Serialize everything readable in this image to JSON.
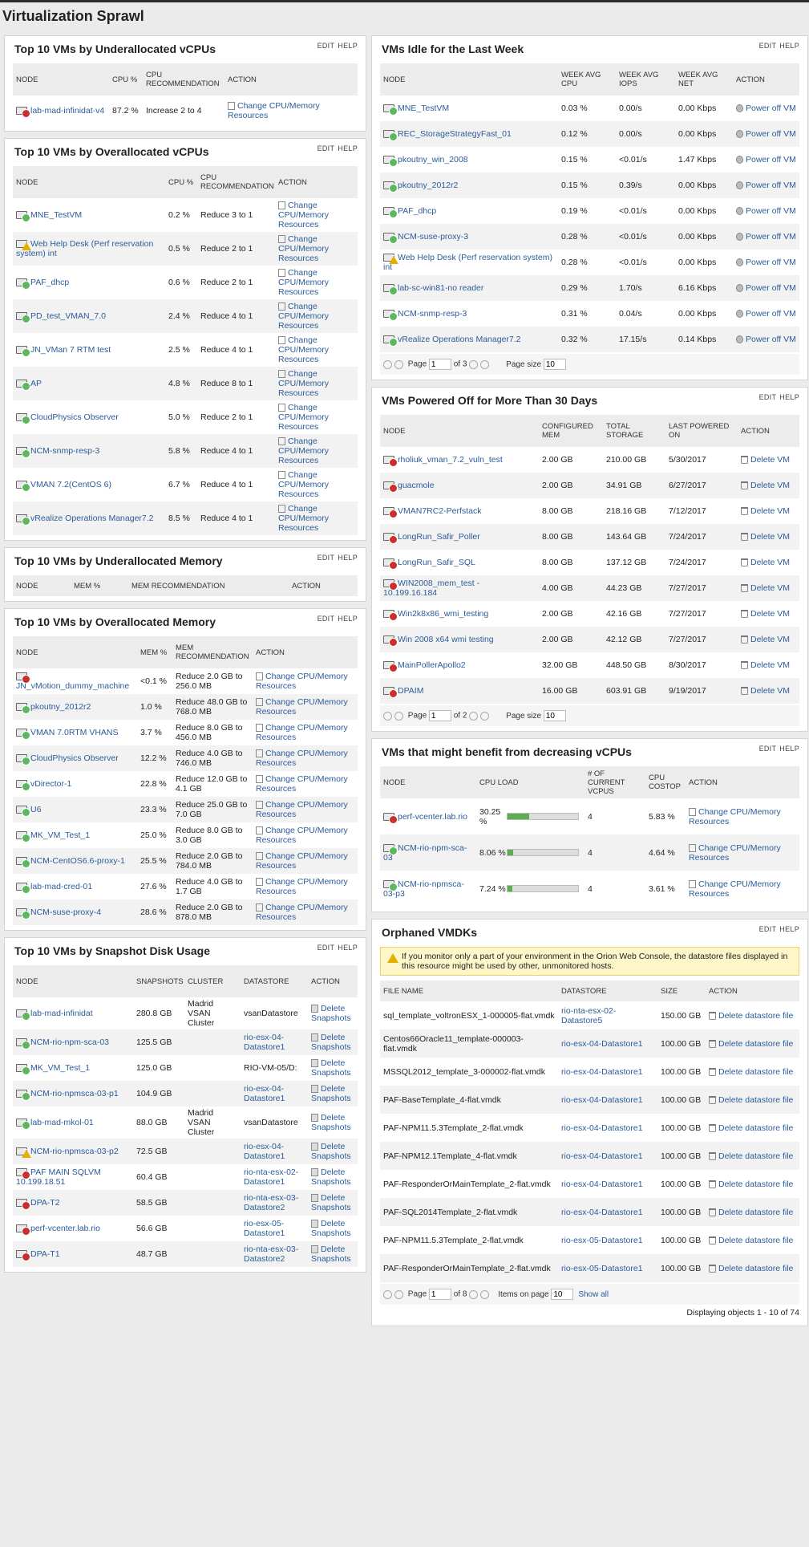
{
  "page_title": "Virtualization Sprawl",
  "colors": {
    "up": "#5cb85c",
    "critical": "#c9302c",
    "warning": "#e3b000",
    "down": "#c9302c",
    "link": "#2b5c99"
  },
  "common": {
    "edit": "EDIT",
    "help": "HELP"
  },
  "under_cpu": {
    "title": "Top 10 VMs by Underallocated vCPUs",
    "headers": [
      "NODE",
      "CPU %",
      "CPU RECOMMENDATION",
      "ACTION"
    ],
    "rows": [
      {
        "node": "lab-mad-infinidat-v4",
        "status": "critical",
        "cpu": "87.2 %",
        "rec": "Increase 2 to 4",
        "action": "Change CPU/Memory Resources"
      }
    ]
  },
  "over_cpu": {
    "title": "Top 10 VMs by Overallocated vCPUs",
    "headers": [
      "NODE",
      "CPU %",
      "CPU RECOMMENDATION",
      "ACTION"
    ],
    "rows": [
      {
        "node": "MNE_TestVM",
        "status": "up",
        "cpu": "0.2 %",
        "rec": "Reduce 3 to 1",
        "action": "Change CPU/Memory Resources"
      },
      {
        "node": "Web Help Desk (Perf reservation system) int",
        "status": "warn",
        "cpu": "0.5 %",
        "rec": "Reduce 2 to 1",
        "action": "Change CPU/Memory Resources"
      },
      {
        "node": "PAF_dhcp",
        "status": "up",
        "cpu": "0.6 %",
        "rec": "Reduce 2 to 1",
        "action": "Change CPU/Memory Resources"
      },
      {
        "node": "PD_test_VMAN_7.0",
        "status": "up",
        "cpu": "2.4 %",
        "rec": "Reduce 4 to 1",
        "action": "Change CPU/Memory Resources"
      },
      {
        "node": "JN_VMan 7 RTM test",
        "status": "up",
        "cpu": "2.5 %",
        "rec": "Reduce 4 to 1",
        "action": "Change CPU/Memory Resources"
      },
      {
        "node": "AP",
        "status": "up",
        "cpu": "4.8 %",
        "rec": "Reduce 8 to 1",
        "action": "Change CPU/Memory Resources"
      },
      {
        "node": "CloudPhysics Observer",
        "status": "up",
        "cpu": "5.0 %",
        "rec": "Reduce 2 to 1",
        "action": "Change CPU/Memory Resources"
      },
      {
        "node": "NCM-snmp-resp-3",
        "status": "up",
        "cpu": "5.8 %",
        "rec": "Reduce 4 to 1",
        "action": "Change CPU/Memory Resources"
      },
      {
        "node": "VMAN 7.2(CentOS 6)",
        "status": "up",
        "cpu": "6.7 %",
        "rec": "Reduce 4 to 1",
        "action": "Change CPU/Memory Resources"
      },
      {
        "node": "vRealize Operations Manager7.2",
        "status": "up",
        "cpu": "8.5 %",
        "rec": "Reduce 4 to 1",
        "action": "Change CPU/Memory Resources"
      }
    ]
  },
  "under_mem": {
    "title": "Top 10 VMs by Underallocated Memory",
    "headers": [
      "NODE",
      "MEM %",
      "MEM RECOMMENDATION",
      "ACTION"
    ]
  },
  "over_mem": {
    "title": "Top 10 VMs by Overallocated Memory",
    "headers": [
      "NODE",
      "MEM %",
      "MEM RECOMMENDATION",
      "ACTION"
    ],
    "rows": [
      {
        "node": "JN_vMotion_dummy_machine",
        "status": "critical",
        "mem": "<0.1 %",
        "rec": "Reduce 2.0 GB to 256.0 MB",
        "action": "Change CPU/Memory Resources"
      },
      {
        "node": "pkoutny_2012r2",
        "status": "up",
        "mem": "1.0 %",
        "rec": "Reduce 48.0 GB to 768.0 MB",
        "action": "Change CPU/Memory Resources"
      },
      {
        "node": "VMAN 7.0RTM VHANS",
        "status": "up",
        "mem": "3.7 %",
        "rec": "Reduce 8.0 GB to 456.0 MB",
        "action": "Change CPU/Memory Resources"
      },
      {
        "node": "CloudPhysics Observer",
        "status": "up",
        "mem": "12.2 %",
        "rec": "Reduce 4.0 GB to 746.0 MB",
        "action": "Change CPU/Memory Resources"
      },
      {
        "node": "vDirector-1",
        "status": "up",
        "mem": "22.8 %",
        "rec": "Reduce 12.0 GB to 4.1 GB",
        "action": "Change CPU/Memory Resources"
      },
      {
        "node": "U6",
        "status": "up",
        "mem": "23.3 %",
        "rec": "Reduce 25.0 GB to 7.0 GB",
        "action": "Change CPU/Memory Resources"
      },
      {
        "node": "MK_VM_Test_1",
        "status": "up",
        "mem": "25.0 %",
        "rec": "Reduce 8.0 GB to 3.0 GB",
        "action": "Change CPU/Memory Resources"
      },
      {
        "node": "NCM-CentOS6.6-proxy-1",
        "status": "up",
        "mem": "25.5 %",
        "rec": "Reduce 2.0 GB to 784.0 MB",
        "action": "Change CPU/Memory Resources"
      },
      {
        "node": "lab-mad-cred-01",
        "status": "up",
        "mem": "27.6 %",
        "rec": "Reduce 4.0 GB to 1.7 GB",
        "action": "Change CPU/Memory Resources"
      },
      {
        "node": "NCM-suse-proxy-4",
        "status": "up",
        "mem": "28.6 %",
        "rec": "Reduce 2.0 GB to 878.0 MB",
        "action": "Change CPU/Memory Resources"
      }
    ]
  },
  "snapshot": {
    "title": "Top 10 VMs by Snapshot Disk Usage",
    "headers": [
      "NODE",
      "SNAPSHOTS",
      "CLUSTER",
      "DATASTORE",
      "ACTION"
    ],
    "rows": [
      {
        "node": "lab-mad-infinidat",
        "status": "up",
        "snap": "280.8 GB",
        "cluster": "Madrid VSAN Cluster",
        "ds": "vsanDatastore",
        "ds_link": false,
        "action": "Delete Snapshots"
      },
      {
        "node": "NCM-rio-npm-sca-03",
        "status": "up",
        "snap": "125.5 GB",
        "cluster": "",
        "ds": "rio-esx-04-Datastore1",
        "ds_link": true,
        "action": "Delete Snapshots"
      },
      {
        "node": "MK_VM_Test_1",
        "status": "up",
        "snap": "125.0 GB",
        "cluster": "",
        "ds": "RIO-VM-05/D:",
        "ds_link": false,
        "action": "Delete Snapshots"
      },
      {
        "node": "NCM-rio-npmsca-03-p1",
        "status": "up",
        "snap": "104.9 GB",
        "cluster": "",
        "ds": "rio-esx-04-Datastore1",
        "ds_link": true,
        "action": "Delete Snapshots"
      },
      {
        "node": "lab-mad-mkol-01",
        "status": "up",
        "snap": "88.0 GB",
        "cluster": "Madrid VSAN Cluster",
        "ds": "vsanDatastore",
        "ds_link": false,
        "action": "Delete Snapshots"
      },
      {
        "node": "NCM-rio-npmsca-03-p2",
        "status": "warn",
        "snap": "72.5 GB",
        "cluster": "",
        "ds": "rio-esx-04-Datastore1",
        "ds_link": true,
        "action": "Delete Snapshots"
      },
      {
        "node": "PAF MAIN SQLVM 10.199.18.51",
        "status": "down",
        "snap": "60.4 GB",
        "cluster": "",
        "ds": "rio-nta-esx-02-Datastore1",
        "ds_link": true,
        "action": "Delete Snapshots"
      },
      {
        "node": "DPA-T2",
        "status": "down",
        "snap": "58.5 GB",
        "cluster": "",
        "ds": "rio-nta-esx-03-Datastore2",
        "ds_link": true,
        "action": "Delete Snapshots"
      },
      {
        "node": "perf-vcenter.lab.rio",
        "status": "critical",
        "snap": "56.6 GB",
        "cluster": "",
        "ds": "rio-esx-05-Datastore1",
        "ds_link": true,
        "action": "Delete Snapshots"
      },
      {
        "node": "DPA-T1",
        "status": "down",
        "snap": "48.7 GB",
        "cluster": "",
        "ds": "rio-nta-esx-03-Datastore2",
        "ds_link": true,
        "action": "Delete Snapshots"
      }
    ]
  },
  "idle": {
    "title": "VMs Idle for the Last Week",
    "headers": [
      "NODE",
      "WEEK AVG CPU",
      "WEEK AVG IOPS",
      "WEEK AVG NET",
      "ACTION"
    ],
    "rows": [
      {
        "node": "MNE_TestVM",
        "status": "up",
        "cpu": "0.03 %",
        "iops": "0.00/s",
        "net": "0.00 Kbps",
        "action": "Power off VM"
      },
      {
        "node": "REC_StorageStrategyFast_01",
        "status": "up",
        "cpu": "0.12 %",
        "iops": "0.00/s",
        "net": "0.00 Kbps",
        "action": "Power off VM"
      },
      {
        "node": "pkoutny_win_2008",
        "status": "up",
        "cpu": "0.15 %",
        "iops": "<0.01/s",
        "net": "1.47 Kbps",
        "action": "Power off VM"
      },
      {
        "node": "pkoutny_2012r2",
        "status": "up",
        "cpu": "0.15 %",
        "iops": "0.39/s",
        "net": "0.00 Kbps",
        "action": "Power off VM"
      },
      {
        "node": "PAF_dhcp",
        "status": "up",
        "cpu": "0.19 %",
        "iops": "<0.01/s",
        "net": "0.00 Kbps",
        "action": "Power off VM"
      },
      {
        "node": "NCM-suse-proxy-3",
        "status": "up",
        "cpu": "0.28 %",
        "iops": "<0.01/s",
        "net": "0.00 Kbps",
        "action": "Power off VM"
      },
      {
        "node": "Web Help Desk (Perf reservation system) int",
        "status": "warn",
        "cpu": "0.28 %",
        "iops": "<0.01/s",
        "net": "0.00 Kbps",
        "action": "Power off VM"
      },
      {
        "node": "lab-sc-win81-no reader",
        "status": "up",
        "cpu": "0.29 %",
        "iops": "1.70/s",
        "net": "6.16 Kbps",
        "action": "Power off VM"
      },
      {
        "node": "NCM-snmp-resp-3",
        "status": "up",
        "cpu": "0.31 %",
        "iops": "0.04/s",
        "net": "0.00 Kbps",
        "action": "Power off VM"
      },
      {
        "node": "vRealize Operations Manager7.2",
        "status": "up",
        "cpu": "0.32 %",
        "iops": "17.15/s",
        "net": "0.14 Kbps",
        "action": "Power off VM"
      }
    ],
    "pager": {
      "page_label": "Page",
      "page": "1",
      "of": "of 3",
      "size_label": "Page size",
      "size": "10"
    }
  },
  "powered_off": {
    "title": "VMs Powered Off for More Than 30 Days",
    "headers": [
      "NODE",
      "CONFIGURED MEM",
      "TOTAL STORAGE",
      "LAST POWERED ON",
      "ACTION"
    ],
    "rows": [
      {
        "node": "rholiuk_vman_7.2_vuln_test",
        "status": "down",
        "mem": "2.00 GB",
        "storage": "210.00 GB",
        "last": "5/30/2017",
        "action": "Delete VM"
      },
      {
        "node": "guacmole",
        "status": "down",
        "mem": "2.00 GB",
        "storage": "34.91 GB",
        "last": "6/27/2017",
        "action": "Delete VM"
      },
      {
        "node": "VMAN7RC2-Perfstack",
        "status": "down",
        "mem": "8.00 GB",
        "storage": "218.16 GB",
        "last": "7/12/2017",
        "action": "Delete VM"
      },
      {
        "node": "LongRun_Safir_Poller",
        "status": "down",
        "mem": "8.00 GB",
        "storage": "143.64 GB",
        "last": "7/24/2017",
        "action": "Delete VM"
      },
      {
        "node": "LongRun_Safir_SQL",
        "status": "down",
        "mem": "8.00 GB",
        "storage": "137.12 GB",
        "last": "7/24/2017",
        "action": "Delete VM"
      },
      {
        "node": "WIN2008_mem_test - 10.199.16.184",
        "status": "down",
        "mem": "4.00 GB",
        "storage": "44.23 GB",
        "last": "7/27/2017",
        "action": "Delete VM"
      },
      {
        "node": "Win2k8x86_wmi_testing",
        "status": "down",
        "mem": "2.00 GB",
        "storage": "42.16 GB",
        "last": "7/27/2017",
        "action": "Delete VM"
      },
      {
        "node": "Win 2008 x64 wmi testing",
        "status": "down",
        "mem": "2.00 GB",
        "storage": "42.12 GB",
        "last": "7/27/2017",
        "action": "Delete VM"
      },
      {
        "node": "MainPollerApollo2",
        "status": "down",
        "mem": "32.00 GB",
        "storage": "448.50 GB",
        "last": "8/30/2017",
        "action": "Delete VM"
      },
      {
        "node": "DPAIM",
        "status": "down",
        "mem": "16.00 GB",
        "storage": "603.91 GB",
        "last": "9/19/2017",
        "action": "Delete VM"
      }
    ],
    "pager": {
      "page_label": "Page",
      "page": "1",
      "of": "of 2",
      "size_label": "Page size",
      "size": "10"
    }
  },
  "dec_cpu": {
    "title": "VMs that might benefit from decreasing vCPUs",
    "headers": [
      "NODE",
      "CPU LOAD",
      "# OF CURRENT VCPUS",
      "CPU COSTOP",
      "ACTION"
    ],
    "rows": [
      {
        "node": "perf-vcenter.lab.rio",
        "status": "critical",
        "load": "30.25 %",
        "load_value": 30.25,
        "vcpus": "4",
        "costop": "5.83 %",
        "action": "Change CPU/Memory Resources"
      },
      {
        "node": "NCM-rio-npm-sca-03",
        "status": "up",
        "load": "8.06 %",
        "load_value": 8.06,
        "vcpus": "4",
        "costop": "4.64 %",
        "action": "Change CPU/Memory Resources"
      },
      {
        "node": "NCM-rio-npmsca-03-p3",
        "status": "up",
        "load": "7.24 %",
        "load_value": 7.24,
        "vcpus": "4",
        "costop": "3.61 %",
        "action": "Change CPU/Memory Resources"
      }
    ]
  },
  "orphaned": {
    "title": "Orphaned VMDKs",
    "warning": "If you monitor only a part of your environment in the Orion Web Console, the datastore files displayed in this resource might be used by other, unmonitored hosts.",
    "headers": [
      "FILE NAME",
      "DATASTORE",
      "SIZE",
      "ACTION"
    ],
    "rows": [
      {
        "file": "sql_template_voltronESX_1-000005-flat.vmdk",
        "ds": "rio-nta-esx-02-Datastore5",
        "size": "150.00 GB",
        "action": "Delete datastore file"
      },
      {
        "file": "Centos66Oracle11_template-000003-flat.vmdk",
        "ds": "rio-esx-04-Datastore1",
        "size": "100.00 GB",
        "action": "Delete datastore file"
      },
      {
        "file": "MSSQL2012_template_3-000002-flat.vmdk",
        "ds": "rio-esx-04-Datastore1",
        "size": "100.00 GB",
        "action": "Delete datastore file"
      },
      {
        "file": "PAF-BaseTemplate_4-flat.vmdk",
        "ds": "rio-esx-04-Datastore1",
        "size": "100.00 GB",
        "action": "Delete datastore file"
      },
      {
        "file": "PAF-NPM11.5.3Template_2-flat.vmdk",
        "ds": "rio-esx-04-Datastore1",
        "size": "100.00 GB",
        "action": "Delete datastore file"
      },
      {
        "file": "PAF-NPM12.1Template_4-flat.vmdk",
        "ds": "rio-esx-04-Datastore1",
        "size": "100.00 GB",
        "action": "Delete datastore file"
      },
      {
        "file": "PAF-ResponderOrMainTemplate_2-flat.vmdk",
        "ds": "rio-esx-04-Datastore1",
        "size": "100.00 GB",
        "action": "Delete datastore file"
      },
      {
        "file": "PAF-SQL2014Template_2-flat.vmdk",
        "ds": "rio-esx-04-Datastore1",
        "size": "100.00 GB",
        "action": "Delete datastore file"
      },
      {
        "file": "PAF-NPM11.5.3Template_2-flat.vmdk",
        "ds": "rio-esx-05-Datastore1",
        "size": "100.00 GB",
        "action": "Delete datastore file"
      },
      {
        "file": "PAF-ResponderOrMainTemplate_2-flat.vmdk",
        "ds": "rio-esx-05-Datastore1",
        "size": "100.00 GB",
        "action": "Delete datastore file"
      }
    ],
    "pager": {
      "page_label": "Page",
      "page": "1",
      "of": "of 8",
      "items_label": "Items on page",
      "items": "10",
      "show_all": "Show all"
    },
    "footer": "Displaying objects 1 - 10 of 74"
  }
}
